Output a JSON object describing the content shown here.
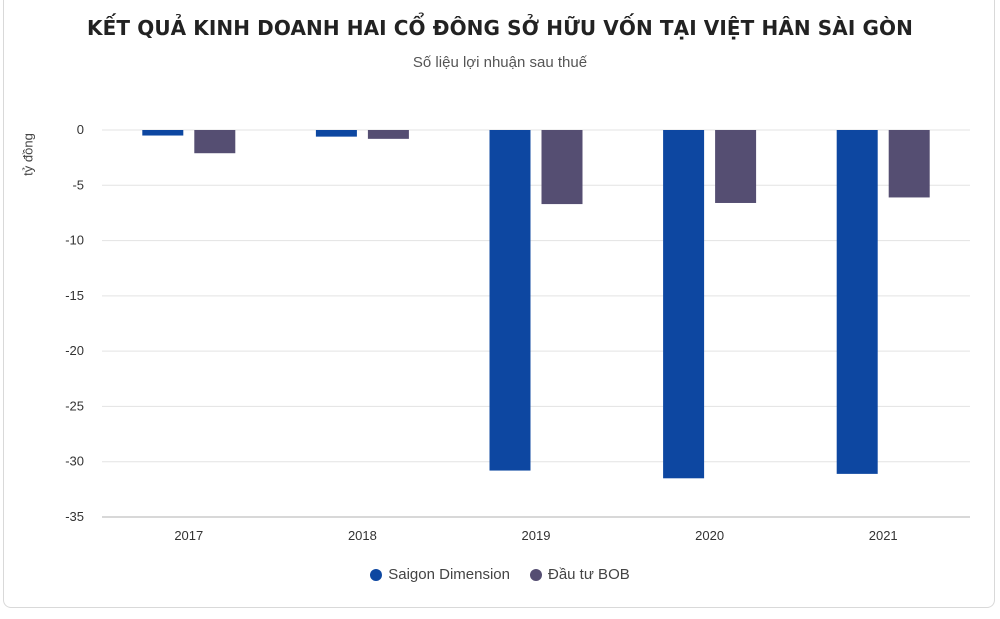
{
  "chart_data": {
    "type": "bar",
    "title": "KẾT QUẢ KINH DOANH HAI CỔ ĐÔNG SỞ HỮU VỐN TẠI VIỆT HÂN SÀI GÒN",
    "subtitle": "Số liệu lợi nhuận sau thuế",
    "ylabel": "tỷ đồng",
    "xlabel": "",
    "categories": [
      "2017",
      "2018",
      "2019",
      "2020",
      "2021"
    ],
    "series": [
      {
        "name": "Saigon Dimension",
        "color": "#0d47a1",
        "values": [
          -0.5,
          -0.6,
          -30.8,
          -31.5,
          -31.1
        ]
      },
      {
        "name": "Đầu tư BOB",
        "color": "#554e72",
        "values": [
          -2.1,
          -0.8,
          -6.7,
          -6.6,
          -6.1
        ]
      }
    ],
    "ylim": [
      -35,
      0
    ],
    "yticks": [
      0,
      -5,
      -10,
      -15,
      -20,
      -25,
      -30,
      -35
    ],
    "grid": true,
    "legend_position": "bottom-center"
  }
}
